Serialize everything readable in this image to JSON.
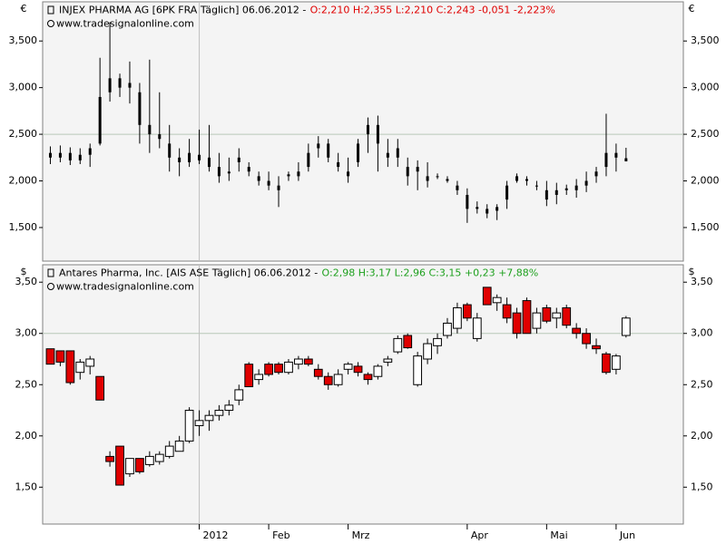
{
  "chart_data": [
    {
      "type": "ohlc",
      "title": "INJEX PHARMA AG [6PK FRA  Täglich] 06.06.2012 -",
      "quote": "O:2,210 H:2,355 L:2,210 C:2,243 -0,051 -2,223%",
      "quote_color": "#e00000",
      "watermark": "www.tradesignalonline.com",
      "currency": "€",
      "color": "#000000",
      "ylim": [
        1.14,
        3.92
      ],
      "yticks": [
        {
          "value": 1.5,
          "label": "1,500"
        },
        {
          "value": 2,
          "label": "2,000"
        },
        {
          "value": 2.5,
          "label": "2,500"
        },
        {
          "value": 3,
          "label": "3,000"
        },
        {
          "value": 3.5,
          "label": "3,500"
        }
      ],
      "hline": 2.5,
      "open": [
        2.3,
        2.25,
        2.3,
        2.22,
        2.28,
        2.4,
        2.95,
        3.1,
        3.0,
        2.95,
        2.6,
        2.5,
        2.4,
        2.25,
        2.2,
        2.28,
        2.25,
        2.15,
        2.1,
        2.2,
        2.15,
        2.05,
        2.0,
        1.95,
        2.05,
        2.1,
        2.15,
        2.35,
        2.4,
        2.15,
        2.1,
        2.2,
        2.5,
        2.6,
        2.3,
        2.25,
        2.15,
        2.1,
        2.05,
        2.05,
        2.02,
        1.95,
        1.85,
        1.72,
        1.7,
        1.68,
        1.8,
        2.0,
        2.02,
        1.95,
        1.9,
        1.85,
        1.92,
        1.9,
        1.95,
        2.05,
        2.15,
        2.3,
        2.21
      ],
      "high": [
        2.37,
        2.38,
        2.36,
        2.35,
        2.4,
        3.32,
        3.7,
        3.15,
        3.28,
        3.05,
        3.3,
        2.95,
        2.6,
        2.35,
        2.45,
        2.55,
        2.6,
        2.3,
        2.25,
        2.35,
        2.2,
        2.1,
        2.1,
        2.05,
        2.1,
        2.2,
        2.4,
        2.48,
        2.45,
        2.3,
        2.25,
        2.45,
        2.68,
        2.7,
        2.45,
        2.45,
        2.25,
        2.22,
        2.2,
        2.08,
        2.05,
        2.0,
        1.92,
        1.78,
        1.75,
        1.75,
        2.0,
        2.08,
        2.05,
        2.0,
        2.0,
        1.98,
        1.96,
        2.02,
        2.1,
        2.15,
        2.72,
        2.4,
        2.355
      ],
      "low": [
        2.18,
        2.2,
        2.17,
        2.18,
        2.15,
        2.38,
        2.85,
        2.9,
        2.83,
        2.4,
        2.3,
        2.35,
        2.1,
        2.05,
        2.15,
        2.18,
        2.1,
        1.98,
        2.0,
        2.1,
        2.05,
        1.95,
        1.9,
        1.72,
        2.0,
        2.0,
        2.1,
        2.25,
        2.2,
        2.1,
        1.98,
        2.15,
        2.3,
        2.1,
        2.15,
        2.15,
        1.95,
        1.9,
        1.93,
        2.02,
        1.98,
        1.85,
        1.55,
        1.65,
        1.6,
        1.58,
        1.7,
        1.98,
        1.95,
        1.9,
        1.73,
        1.75,
        1.85,
        1.82,
        1.88,
        1.98,
        2.05,
        2.1,
        2.21
      ],
      "close": [
        2.25,
        2.3,
        2.22,
        2.28,
        2.35,
        2.9,
        3.1,
        3.0,
        3.05,
        2.6,
        2.5,
        2.45,
        2.25,
        2.2,
        2.3,
        2.22,
        2.15,
        2.05,
        2.08,
        2.25,
        2.1,
        2.0,
        1.95,
        1.9,
        2.07,
        2.05,
        2.3,
        2.4,
        2.25,
        2.2,
        2.05,
        2.4,
        2.6,
        2.4,
        2.25,
        2.35,
        2.05,
        2.15,
        2.0,
        2.05,
        2.0,
        1.9,
        1.7,
        1.7,
        1.65,
        1.72,
        1.95,
        2.05,
        2.0,
        1.95,
        1.8,
        1.9,
        1.9,
        1.95,
        2.0,
        2.1,
        2.3,
        2.25,
        2.243
      ]
    },
    {
      "type": "candlestick",
      "title": "Antares Pharma, Inc. [AIS ASE  Täglich] 06.06.2012 -",
      "quote": "O:2,98 H:3,17 L:2,96 C:3,15 +0,23 +7,88%",
      "quote_color": "#1ea01e",
      "watermark": "www.tradesignalonline.com",
      "currency": "$",
      "up_color": "#ffffff",
      "down_color": "#e00000",
      "ylim": [
        1.14,
        3.67
      ],
      "yticks": [
        {
          "value": 1.5,
          "label": "1,50"
        },
        {
          "value": 2,
          "label": "2,00"
        },
        {
          "value": 2.5,
          "label": "2,50"
        },
        {
          "value": 3,
          "label": "3,00"
        },
        {
          "value": 3.5,
          "label": "3,50"
        }
      ],
      "hline": 3,
      "categories": [
        null,
        null,
        null,
        null,
        null,
        null,
        null,
        null,
        null,
        null,
        null,
        null,
        null,
        null,
        null,
        "2012",
        null,
        null,
        null,
        null,
        null,
        null,
        "Feb",
        null,
        null,
        null,
        null,
        null,
        null,
        null,
        "Mrz",
        null,
        null,
        null,
        null,
        null,
        null,
        null,
        null,
        null,
        null,
        null,
        "Apr",
        null,
        null,
        null,
        null,
        null,
        null,
        null,
        "Mai",
        null,
        null,
        null,
        null,
        null,
        null,
        "Jun",
        null
      ],
      "open": [
        2.85,
        2.83,
        2.83,
        2.62,
        2.68,
        2.58,
        1.8,
        1.9,
        1.63,
        1.78,
        1.72,
        1.75,
        1.8,
        1.85,
        1.95,
        2.1,
        2.15,
        2.2,
        2.25,
        2.35,
        2.7,
        2.55,
        2.7,
        2.7,
        2.62,
        2.7,
        2.75,
        2.65,
        2.58,
        2.5,
        2.65,
        2.68,
        2.6,
        2.58,
        2.72,
        2.82,
        2.98,
        2.5,
        2.75,
        2.88,
        2.98,
        3.05,
        3.28,
        2.95,
        3.45,
        3.3,
        3.28,
        3.2,
        3.32,
        3.05,
        3.25,
        3.15,
        3.25,
        3.05,
        3.0,
        2.88,
        2.8,
        2.65,
        2.98
      ],
      "high": [
        2.85,
        2.83,
        2.83,
        2.75,
        2.78,
        2.58,
        1.85,
        1.9,
        1.78,
        1.78,
        1.85,
        1.85,
        1.95,
        2.0,
        2.28,
        2.25,
        2.25,
        2.3,
        2.35,
        2.5,
        2.72,
        2.65,
        2.72,
        2.72,
        2.75,
        2.78,
        2.78,
        2.7,
        2.62,
        2.65,
        2.72,
        2.72,
        2.62,
        2.7,
        2.78,
        2.98,
        3.0,
        2.82,
        2.95,
        3.0,
        3.15,
        3.3,
        3.3,
        3.2,
        3.45,
        3.38,
        3.35,
        3.25,
        3.35,
        3.25,
        3.28,
        3.25,
        3.28,
        3.1,
        3.05,
        2.95,
        2.82,
        2.8,
        3.17
      ],
      "low": [
        2.7,
        2.68,
        2.5,
        2.55,
        2.6,
        2.35,
        1.7,
        1.52,
        1.6,
        1.63,
        1.7,
        1.72,
        1.78,
        1.85,
        1.93,
        2.0,
        2.05,
        2.15,
        2.2,
        2.3,
        2.48,
        2.5,
        2.58,
        2.6,
        2.6,
        2.65,
        2.68,
        2.55,
        2.45,
        2.48,
        2.6,
        2.58,
        2.5,
        2.55,
        2.68,
        2.8,
        2.85,
        2.48,
        2.7,
        2.8,
        2.95,
        3.0,
        3.12,
        2.92,
        3.28,
        3.22,
        3.1,
        2.95,
        3.0,
        3.0,
        3.1,
        3.05,
        3.05,
        2.95,
        2.85,
        2.8,
        2.6,
        2.6,
        2.96
      ],
      "close": [
        2.7,
        2.72,
        2.52,
        2.72,
        2.75,
        2.35,
        1.75,
        1.52,
        1.78,
        1.65,
        1.8,
        1.82,
        1.9,
        1.95,
        2.25,
        2.15,
        2.2,
        2.25,
        2.3,
        2.45,
        2.48,
        2.6,
        2.6,
        2.62,
        2.72,
        2.75,
        2.7,
        2.58,
        2.5,
        2.6,
        2.7,
        2.62,
        2.55,
        2.68,
        2.75,
        2.95,
        2.86,
        2.78,
        2.9,
        2.95,
        3.1,
        3.25,
        3.15,
        3.15,
        3.28,
        3.35,
        3.15,
        3.0,
        3.0,
        3.2,
        3.12,
        3.2,
        3.08,
        3.0,
        2.9,
        2.85,
        2.62,
        2.78,
        3.15
      ]
    }
  ]
}
